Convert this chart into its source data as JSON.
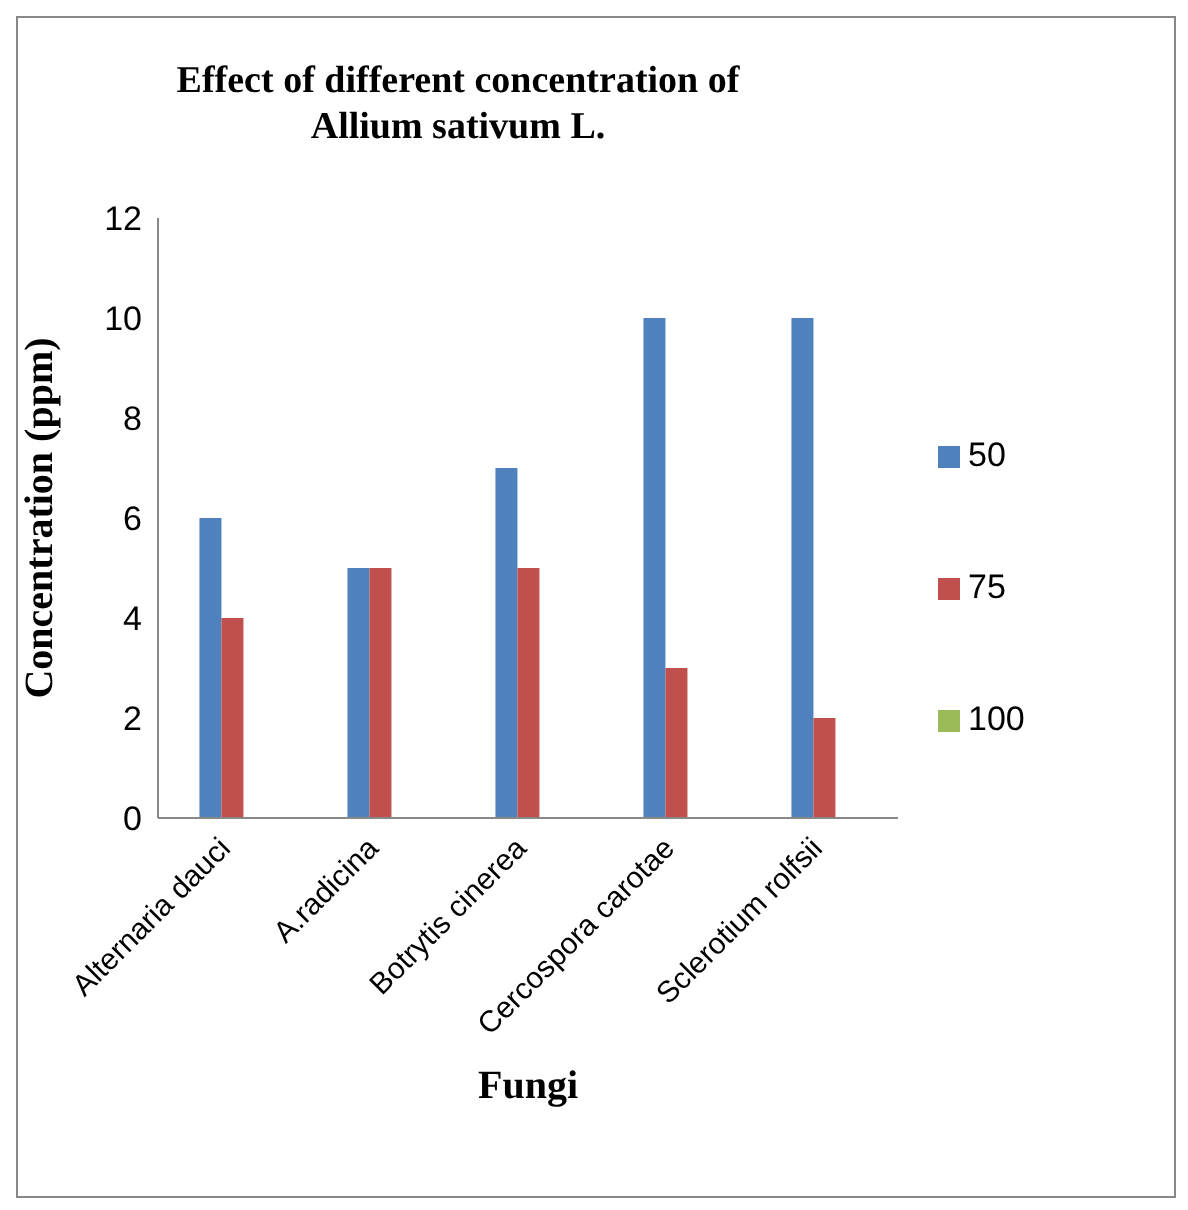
{
  "chart_data": {
    "type": "bar",
    "title": "Effect of different concentration of Allium sativum L.",
    "xlabel": "Fungi",
    "ylabel": "Concentration (ppm)",
    "categories": [
      "Alternaria dauci",
      "A.radicina",
      "Botrytis cinerea",
      "Cercospora carotae",
      "Sclerotium rolfsii"
    ],
    "series": [
      {
        "name": "50",
        "color": "#4f81bd",
        "values": [
          6,
          5,
          7,
          10,
          10
        ]
      },
      {
        "name": "75",
        "color": "#c0504d",
        "values": [
          4,
          5,
          5,
          3,
          2
        ]
      },
      {
        "name": "100",
        "color": "#9bbb59",
        "values": [
          0,
          0,
          0,
          0,
          0
        ]
      }
    ],
    "ylim": [
      0,
      12
    ],
    "yticks": [
      0,
      2,
      4,
      6,
      8,
      10,
      12
    ],
    "grid": false,
    "legend": "right"
  }
}
